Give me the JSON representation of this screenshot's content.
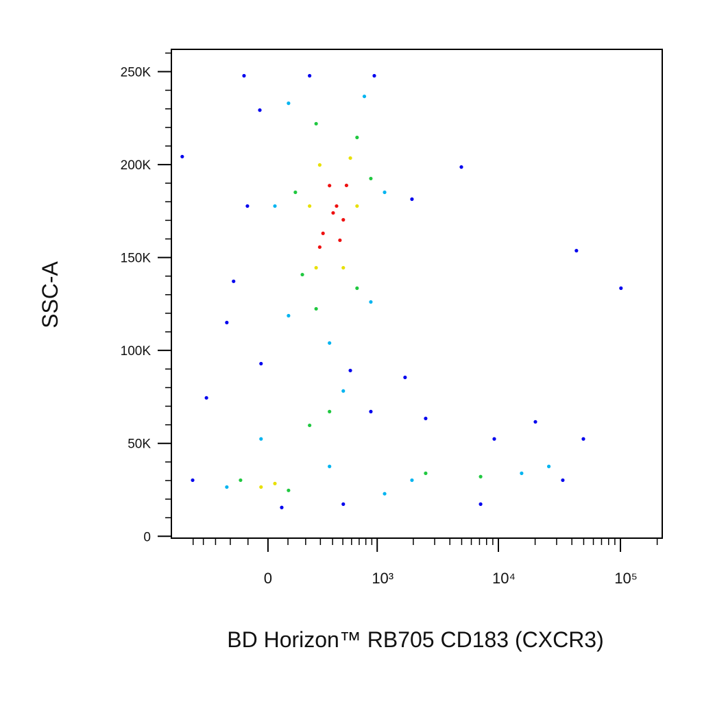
{
  "chart_data": {
    "type": "scatter",
    "x_label": "BD Horizon™ RB705 CD183 (CXCR3)",
    "y_label": "SSC-A",
    "x_scale": "biexponential",
    "xlim": [
      -780,
      220000
    ],
    "ylim": [
      -1000,
      262000
    ],
    "xticks": [
      0,
      {
        "value": 1000,
        "label": "10³"
      },
      {
        "value": 10000,
        "label": "10⁴"
      },
      {
        "value": 100000,
        "label": "10⁵"
      }
    ],
    "xminorticks": [
      -500,
      -400,
      -300,
      -200,
      -100,
      100,
      200,
      300,
      400,
      500,
      600,
      700,
      800,
      900,
      2000,
      3000,
      4000,
      5000,
      6000,
      7000,
      8000,
      9000,
      20000,
      30000,
      40000,
      50000,
      60000,
      70000,
      80000,
      90000,
      200000
    ],
    "yticks": [
      0,
      {
        "value": 50000,
        "label": "50K"
      },
      {
        "value": 100000,
        "label": "100K"
      },
      {
        "value": 150000,
        "label": "150K"
      },
      {
        "value": 200000,
        "label": "200K"
      },
      {
        "value": 250000,
        "label": "250K"
      }
    ],
    "yminorticks": [
      10000,
      20000,
      30000,
      40000,
      60000,
      70000,
      80000,
      90000,
      110000,
      120000,
      130000,
      140000,
      160000,
      170000,
      180000,
      190000,
      210000,
      220000,
      230000,
      240000,
      260000
    ],
    "series": [
      {
        "color": "#0000ee",
        "x": [
          -121,
          -627,
          -40,
          -103,
          -180,
          -222,
          -34,
          585,
          1950,
          4970,
          43600,
          101000,
          -373,
          -505,
          883,
          2530,
          9250,
          20100,
          49700,
          33700,
          68,
          505,
          7150,
          225,
          945,
          1710
        ],
        "y": [
          247800,
          204300,
          229300,
          177700,
          137200,
          115000,
          92900,
          89200,
          181400,
          198700,
          153700,
          133500,
          74500,
          30200,
          67100,
          63400,
          52400,
          61600,
          52400,
          30200,
          15500,
          17300,
          17300,
          247800,
          247800,
          85500
        ]
      },
      {
        "color": "#00b4f0",
        "x": [
          103,
          777,
          34,
          1155,
          103,
          883,
          373,
          -222,
          373,
          -34,
          505,
          1950,
          15500,
          25900,
          1155
        ],
        "y": [
          233000,
          236700,
          177700,
          185100,
          118700,
          126100,
          104000,
          26500,
          37600,
          52400,
          78200,
          30200,
          33900,
          37600,
          22900
        ]
      },
      {
        "color": "#20c840",
        "x": [
          269,
          671,
          140,
          883,
          180,
          671,
          269,
          -140,
          103,
          225,
          373,
          2530,
          7150
        ],
        "y": [
          222000,
          214600,
          185100,
          192500,
          140800,
          133500,
          122400,
          30200,
          24700,
          59700,
          67100,
          33900,
          32100
        ]
      },
      {
        "color": "#e8e000",
        "x": [
          295,
          585,
          269,
          505,
          225,
          671,
          -34,
          34
        ],
        "y": [
          199800,
          203500,
          144500,
          144500,
          177700,
          177700,
          26500,
          28400
        ]
      },
      {
        "color": "#ee1010",
        "x": [
          373,
          437,
          505,
          320,
          470,
          405,
          540,
          295
        ],
        "y": [
          188700,
          177700,
          170300,
          163000,
          159300,
          174000,
          188800,
          155600
        ]
      }
    ]
  }
}
